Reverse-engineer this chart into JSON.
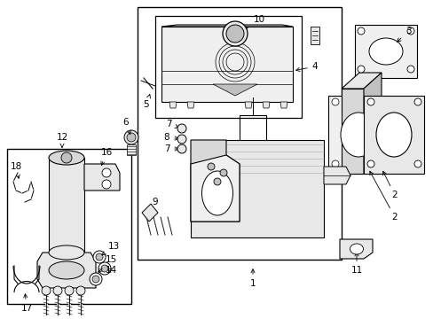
{
  "bg_color": "#ffffff",
  "line_color": "#000000",
  "fig_width": 4.89,
  "fig_height": 3.6,
  "dpi": 100,
  "gray1": "#d8d8d8",
  "gray2": "#e8e8e8",
  "gray3": "#c0c0c0",
  "gray4": "#f0f0f0",
  "fontsize": 7.5,
  "lw": 0.8
}
